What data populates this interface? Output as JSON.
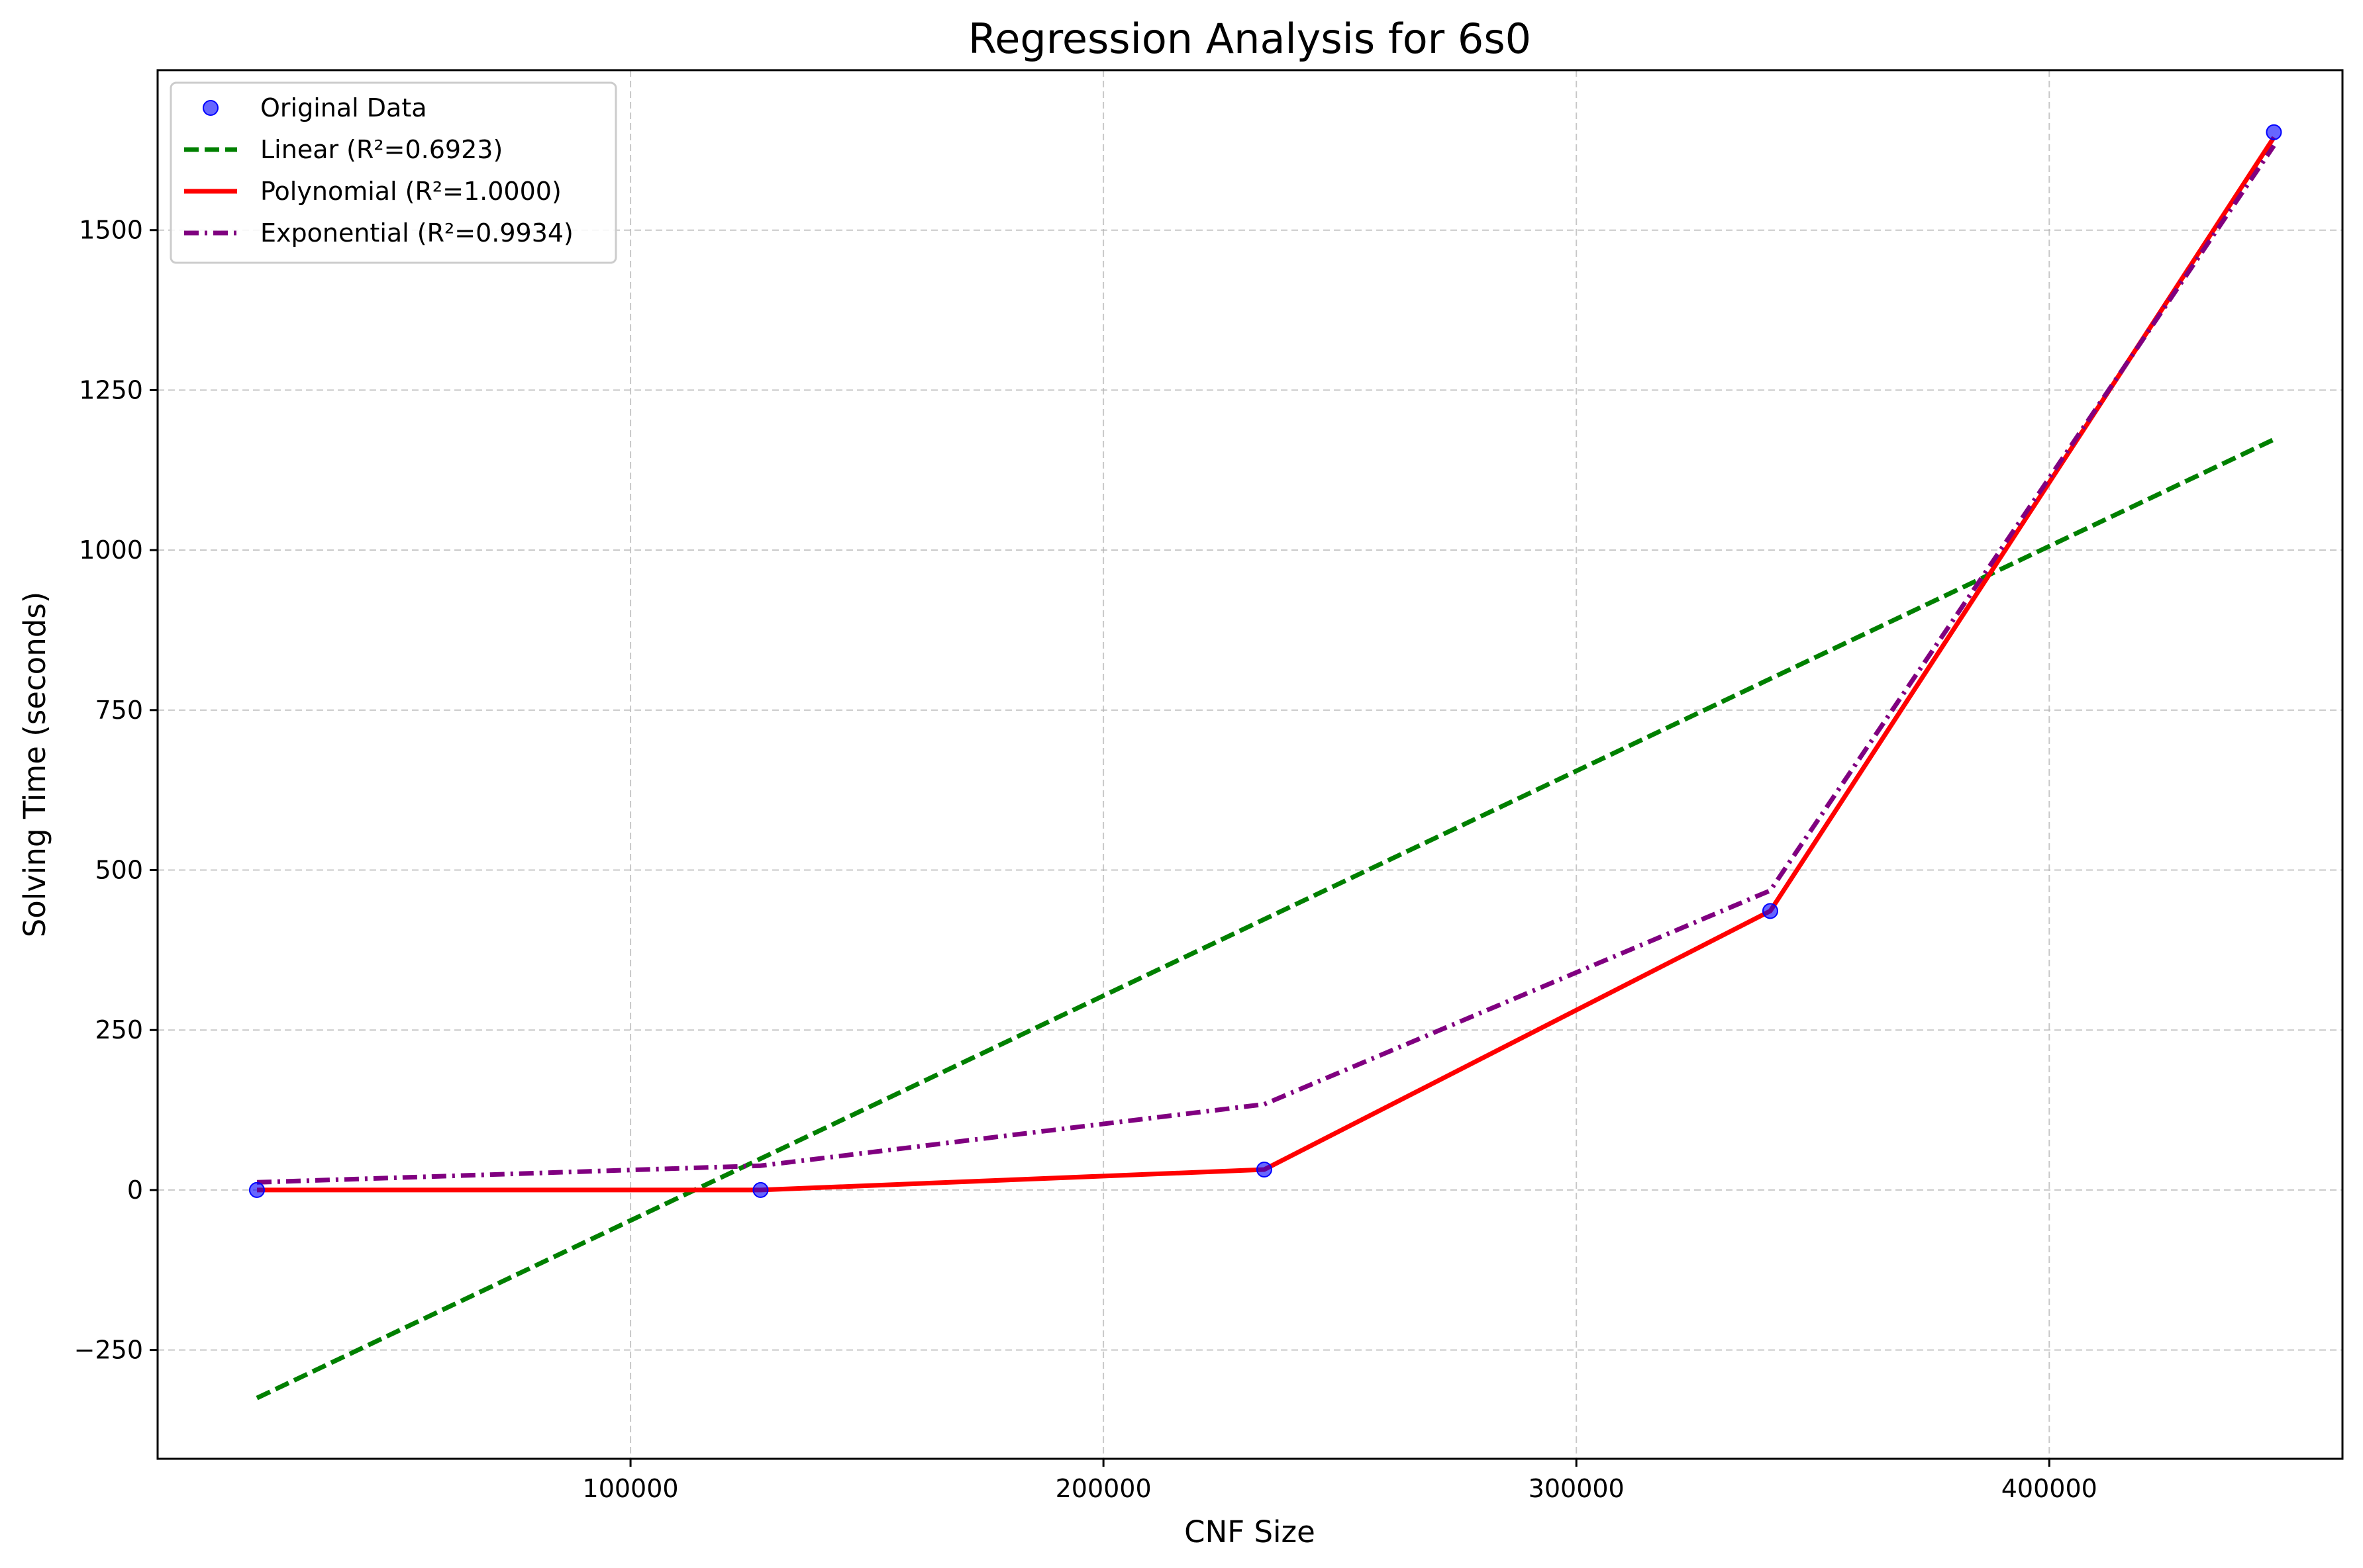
{
  "chart_data": {
    "type": "scatter",
    "title": "Regression Analysis for 6s0",
    "xlabel": "CNF Size",
    "ylabel": "Solving Time (seconds)",
    "xlim": [
      0,
      462000
    ],
    "ylim": [
      -420,
      1750
    ],
    "x_ticks": [
      100000,
      200000,
      300000,
      400000
    ],
    "x_tick_labels": [
      "100000",
      "200000",
      "300000",
      "400000"
    ],
    "y_ticks": [
      -250,
      0,
      250,
      500,
      750,
      1000,
      1250,
      1500
    ],
    "y_tick_labels": [
      "−250",
      "0",
      "250",
      "500",
      "750",
      "1000",
      "1250",
      "1500"
    ],
    "grid": true,
    "grid_style": "dashed",
    "legend_position": "top-left",
    "series": [
      {
        "name": "Original Data",
        "kind": "scatter",
        "color": "#0000ff",
        "x": [
          21000,
          127500,
          234000,
          341000,
          447500
        ],
        "y": [
          0,
          0,
          32,
          436,
          1653
        ]
      },
      {
        "name": "Linear (R²=0.6923)",
        "kind": "line",
        "style": "dashed",
        "color": "#008000",
        "x": [
          21000,
          447500
        ],
        "y": [
          -325,
          1173
        ]
      },
      {
        "name": "Polynomial (R²=1.0000)",
        "kind": "line",
        "style": "solid",
        "color": "#ff0000",
        "x": [
          21000,
          127500,
          234000,
          341000,
          447500
        ],
        "y": [
          0,
          0,
          32,
          436,
          1645
        ]
      },
      {
        "name": "Exponential (R²=0.9934)",
        "kind": "line",
        "style": "dashdot",
        "color": "#800080",
        "x": [
          21000,
          127500,
          234000,
          341000,
          447500
        ],
        "y": [
          12,
          38,
          134,
          468,
          1632
        ]
      }
    ]
  }
}
